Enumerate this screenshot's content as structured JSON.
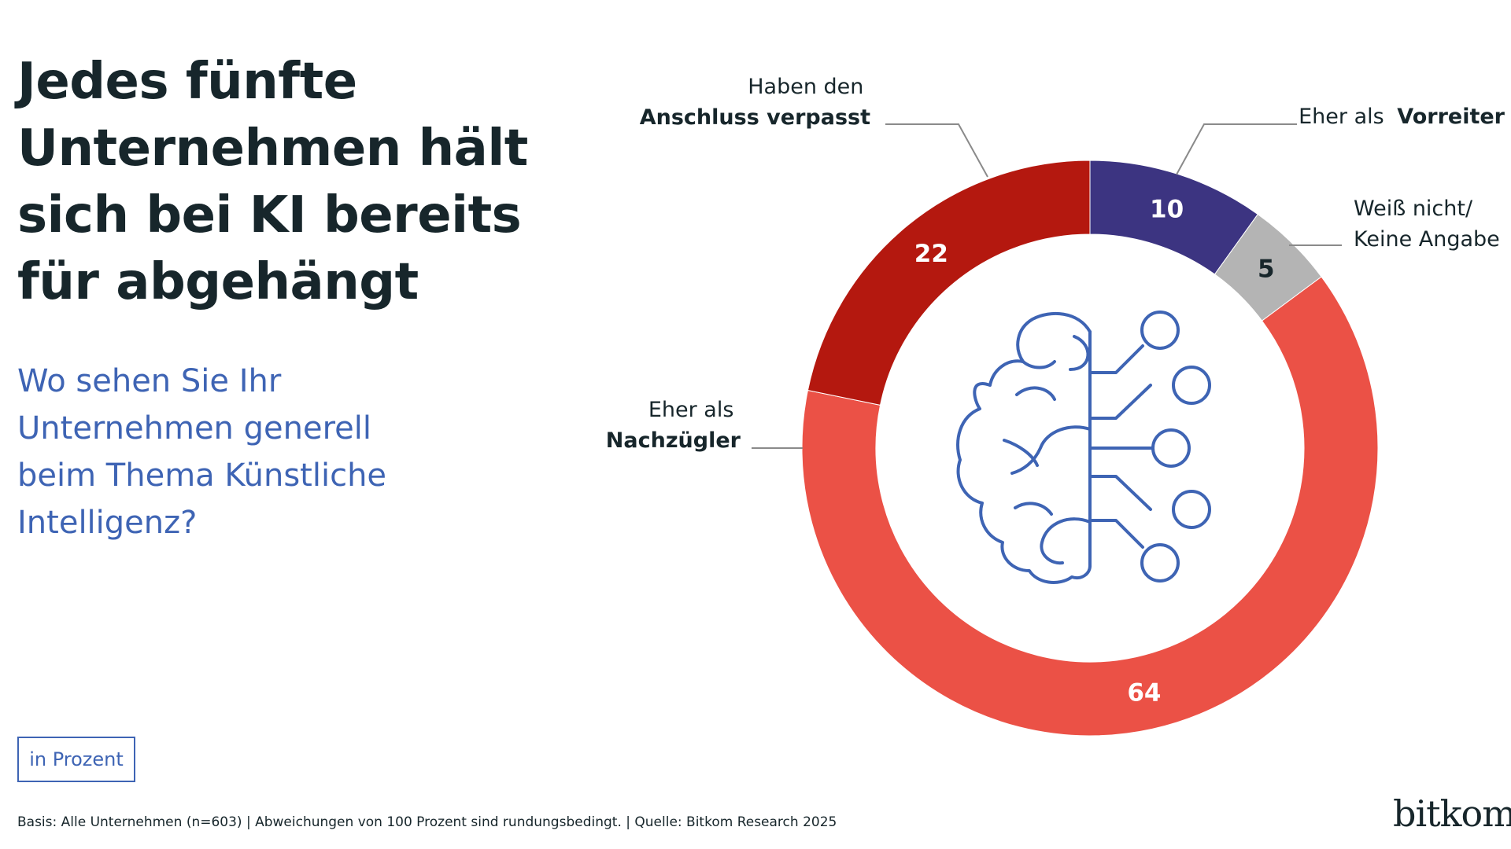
{
  "title": "Jedes fünfte Unternehmen hält sich bei KI bereits für abgehängt",
  "question": "Wo sehen Sie Ihr Unternehmen generell beim Thema Künstliche Intelligenz?",
  "unit": "in Prozent",
  "footnote": "Basis: Alle Unternehmen (n=603) | Abweichungen von 100 Prozent sind rundungsbedingt. | Quelle: Bitkom Research 2025",
  "logo": "bitkom",
  "center_icon": "brain-circuit-icon",
  "chart_data": {
    "type": "pie",
    "variant": "donut",
    "title": "Wo sehen Sie Ihr Unternehmen generell beim Thema Künstliche Intelligenz?",
    "unit": "in Prozent",
    "slices": [
      {
        "key": "vorreiter",
        "label": "Eher als Vorreiter",
        "label_parts": {
          "normal": "Eher als",
          "bold": "Vorreiter"
        },
        "value": 10,
        "color": "#3c3481",
        "text_color": "#ffffff"
      },
      {
        "key": "weiss-nicht",
        "label": "Weiß nicht/ Keine Angabe",
        "label_lines": [
          "Weiß nicht/",
          "Keine Angabe"
        ],
        "value": 5,
        "color": "#b4b4b4",
        "text_color": "#17262b"
      },
      {
        "key": "nachzuegler",
        "label": "Eher als Nachzügler",
        "label_parts": {
          "normal": "Eher als",
          "bold": "Nachzügler"
        },
        "value": 64,
        "color": "#eb5146",
        "text_color": "#ffffff"
      },
      {
        "key": "verpasst",
        "label": "Haben den Anschluss verpasst",
        "label_parts": {
          "normal": "Haben den",
          "bold": "Anschluss verpasst"
        },
        "value": 22,
        "color": "#b4180f",
        "text_color": "#ffffff"
      }
    ]
  }
}
